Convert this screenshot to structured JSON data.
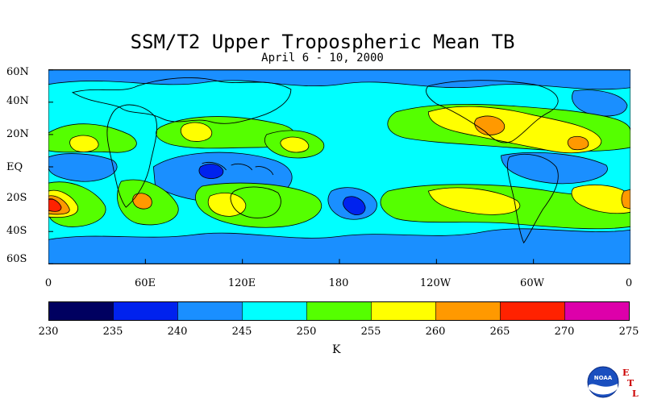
{
  "header": {
    "title": "SSM/T2 Upper Tropospheric Mean TB",
    "subtitle": "April 6 - 10, 2000"
  },
  "map": {
    "lat_ticks": [
      "60N",
      "40N",
      "20N",
      "EQ",
      "20S",
      "40S",
      "60S"
    ],
    "lon_ticks": [
      "0",
      "60E",
      "120E",
      "180",
      "120W",
      "60W",
      "0"
    ]
  },
  "colorbar": {
    "unit": "K",
    "ticks": [
      "230",
      "235",
      "240",
      "245",
      "250",
      "255",
      "260",
      "265",
      "270",
      "275"
    ],
    "colors": [
      "#000060",
      "#0022ee",
      "#1a8fff",
      "#00ffff",
      "#55ff00",
      "#ffff00",
      "#ff9900",
      "#ff2200",
      "#dd00aa"
    ]
  },
  "logo": {
    "text": "NOAA",
    "letters": [
      "E",
      "T",
      "L"
    ]
  }
}
